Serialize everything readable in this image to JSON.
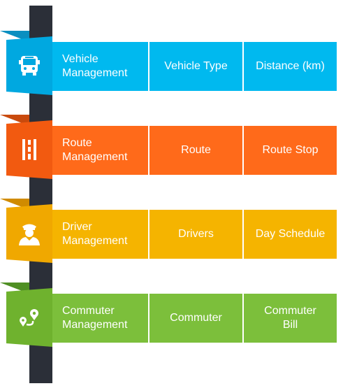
{
  "sections": [
    {
      "title_line1": "Vehicle",
      "title_line2": "Management",
      "item1": "Vehicle Type",
      "item2": "Distance (km)",
      "icon": "bus-icon",
      "color": "#00b9ef",
      "shadow": "#0a8fc0"
    },
    {
      "title_line1": "Route",
      "title_line2": "Management",
      "item1": "Route",
      "item2": "Route Stop",
      "icon": "road-icon",
      "color": "#ff6a1a",
      "shadow": "#c94a0d"
    },
    {
      "title_line1": "Driver",
      "title_line2": "Management",
      "item1": "Drivers",
      "item2": "Day Schedule",
      "icon": "driver-icon",
      "color": "#f5b400",
      "shadow": "#d08b00"
    },
    {
      "title_line1": "Commuter",
      "title_line2": "Management",
      "item1": "Commuter",
      "item2_line1": "Commuter",
      "item2_line2": "Bill",
      "icon": "route-pin-icon",
      "color": "#7cbf3b",
      "shadow": "#4f8f23"
    }
  ]
}
